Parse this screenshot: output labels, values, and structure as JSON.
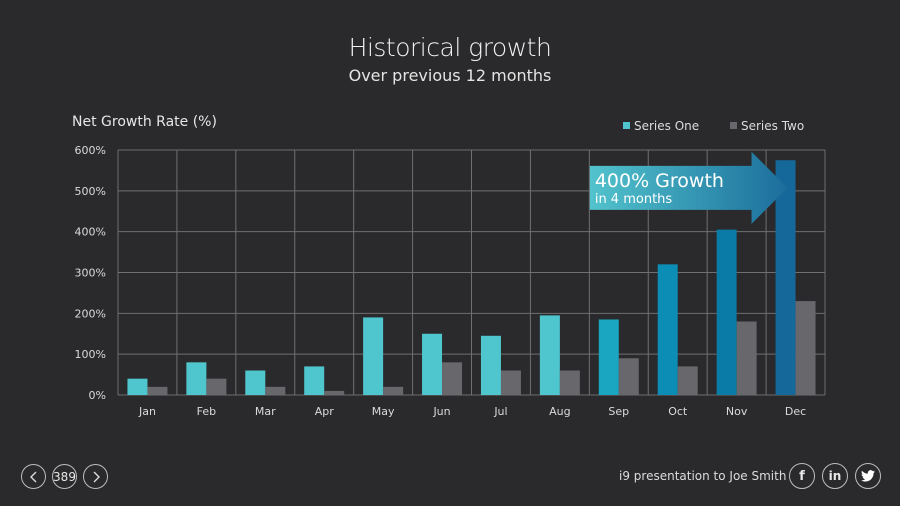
{
  "header": {
    "title": "Historical growth",
    "subtitle": "Over previous 12 months"
  },
  "chart_data": {
    "type": "bar",
    "title": "Historical growth",
    "subtitle": "Over previous 12 months",
    "xlabel": "",
    "ylabel": "Net Growth Rate (%)",
    "ylim": [
      0,
      600
    ],
    "yticks": [
      0,
      100,
      200,
      300,
      400,
      500,
      600
    ],
    "ytick_labels": [
      "0%",
      "100%",
      "200%",
      "300%",
      "400%",
      "500%",
      "600%"
    ],
    "grid": true,
    "legend_position": "top-right",
    "categories": [
      "Jan",
      "Feb",
      "Mar",
      "Apr",
      "May",
      "Jun",
      "Jul",
      "Aug",
      "Sep",
      "Oct",
      "Nov",
      "Dec"
    ],
    "series": [
      {
        "name": "Series One",
        "color": "#4fc6ce",
        "values": [
          40,
          80,
          60,
          70,
          190,
          150,
          145,
          195,
          185,
          320,
          405,
          575
        ],
        "bar_colors": [
          "#4fc6ce",
          "#4fc6ce",
          "#4fc6ce",
          "#4fc6ce",
          "#4fc6ce",
          "#4fc6ce",
          "#4fc6ce",
          "#4fc6ce",
          "#1aa6c1",
          "#0b8db5",
          "#0a7aa6",
          "#15689a"
        ]
      },
      {
        "name": "Series Two",
        "color": "#68676b",
        "values": [
          20,
          40,
          20,
          10,
          20,
          80,
          60,
          60,
          90,
          70,
          180,
          230
        ]
      }
    ],
    "annotations": [
      {
        "type": "arrow",
        "text": "400% Growth",
        "subtext": "in 4 months",
        "from_category": "Sep",
        "to_category": "Dec",
        "y_value": 500,
        "gradient": [
          "#52c3cc",
          "#1b6e9c"
        ]
      }
    ]
  },
  "footer": {
    "page_number": "389",
    "prev_icon": "chevron-left-icon",
    "next_icon": "chevron-right-icon",
    "presentation_text": "i9 presentation to Joe Smith",
    "social": [
      {
        "name": "facebook-icon",
        "glyph": "f"
      },
      {
        "name": "linkedin-icon",
        "glyph": "in"
      },
      {
        "name": "twitter-icon",
        "glyph": "🐦"
      }
    ]
  }
}
